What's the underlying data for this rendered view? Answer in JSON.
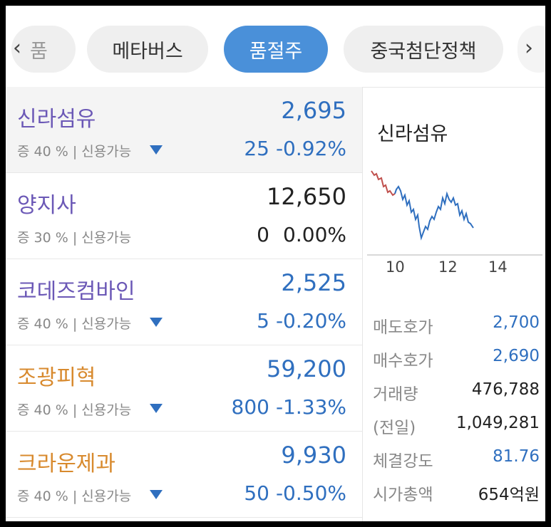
{
  "tabs": {
    "partial_label": "품",
    "items": [
      {
        "label": "메타버스",
        "active": false
      },
      {
        "label": "품절주",
        "active": true
      },
      {
        "label": "중국첨단정책",
        "active": false
      }
    ],
    "left_arrow": "‹",
    "right_arrow": "›"
  },
  "stocks": [
    {
      "name": "신라섬유",
      "price": "2,695",
      "meta": "증 40 % | 신용가능",
      "change": "25",
      "pct": "-0.92%",
      "direction": "down",
      "name_color": "#6b58b6"
    },
    {
      "name": "양지사",
      "price": "12,650",
      "meta": "증 30 % | 신용가능",
      "change": "0",
      "pct": "0.00%",
      "direction": "flat",
      "name_color": "#6b58b6"
    },
    {
      "name": "코데즈컴바인",
      "price": "2,525",
      "meta": "증 40 % | 신용가능",
      "change": "5",
      "pct": "-0.20%",
      "direction": "down",
      "name_color": "#6b58b6"
    },
    {
      "name": "조광피혁",
      "price": "59,200",
      "meta": "증 40 % | 신용가능",
      "change": "800",
      "pct": "-1.33%",
      "direction": "down",
      "name_color": "#d88a2e"
    },
    {
      "name": "크라운제과",
      "price": "9,930",
      "meta": "증 40 % | 신용가능",
      "change": "50",
      "pct": "-0.50%",
      "direction": "down",
      "name_color": "#d88a2e"
    }
  ],
  "detail": {
    "name": "신라섬유",
    "chart": {
      "x_ticks": [
        "10",
        "12",
        "14"
      ],
      "colors": {
        "up": "#c0504d",
        "down": "#2f6fbf"
      }
    },
    "info": [
      {
        "label": "매도호가",
        "value": "2,700",
        "tone": "blue"
      },
      {
        "label": "매수호가",
        "value": "2,690",
        "tone": "blue"
      },
      {
        "label": "거래량",
        "value": "476,788",
        "tone": "dark"
      },
      {
        "label": "(전일)",
        "value": "1,049,281",
        "tone": "dark"
      },
      {
        "label": "체결강도",
        "value": "81.76",
        "tone": "blue"
      },
      {
        "label": "시가총액",
        "value": "654억원",
        "tone": "dark"
      }
    ]
  }
}
